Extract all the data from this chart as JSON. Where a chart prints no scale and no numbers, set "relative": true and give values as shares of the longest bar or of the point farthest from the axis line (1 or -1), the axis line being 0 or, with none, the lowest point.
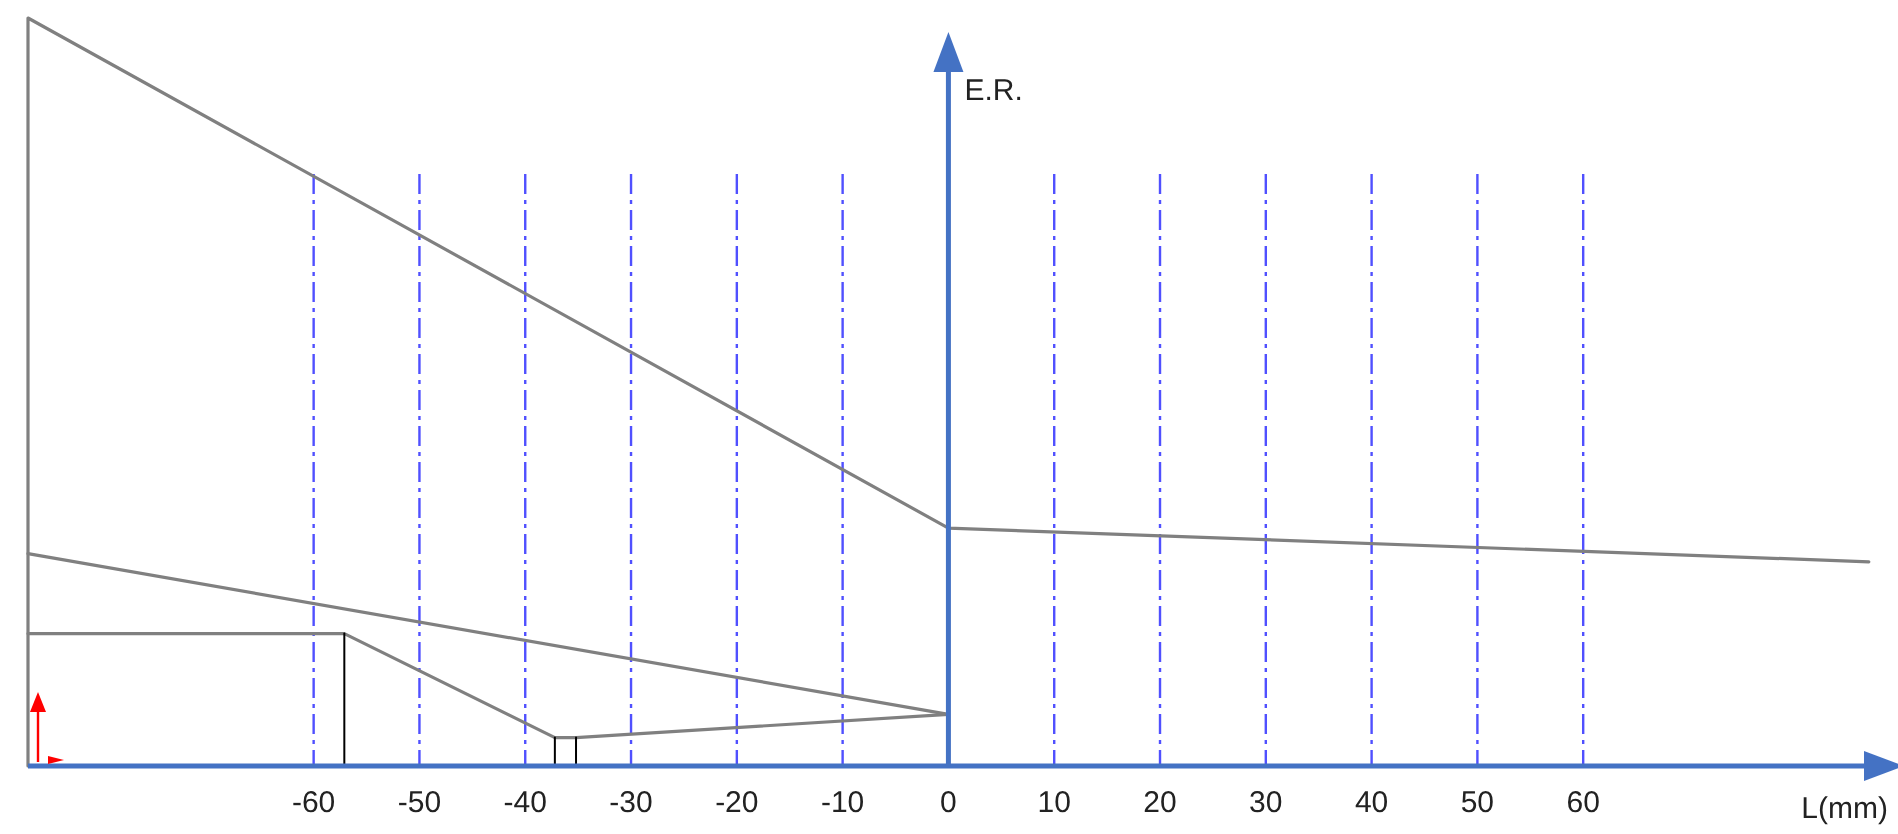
{
  "chart_data": {
    "type": "line",
    "relative": true,
    "xlabel": "L(mm)",
    "ylabel": "E.R.",
    "xlim": [
      -87,
      89
    ],
    "xticks": [
      -60,
      -50,
      -40,
      -30,
      -20,
      -10,
      0,
      10,
      20,
      30,
      40,
      50,
      60
    ],
    "grid": "x",
    "marker": "none",
    "ref_lines": [
      {
        "axis": "x",
        "value": 0,
        "color": "#4472c4"
      }
    ],
    "line_style": "solid",
    "series": [
      {
        "color": "#808080",
        "x": [
          -87,
          -87,
          0,
          87
        ],
        "values": [
          0,
          1,
          0.318,
          0.273
        ]
      },
      {
        "color": "#808080",
        "x": [
          -87,
          0
        ],
        "values": [
          0.284,
          0.069
        ]
      },
      {
        "color": "#808080",
        "x": [
          -87,
          -57.1,
          -37.2,
          -35.2,
          0
        ],
        "values": [
          0.177,
          0.177,
          0.038,
          0.038,
          0.069
        ]
      },
      {
        "color": "#000000",
        "x": [
          -57.1,
          -57.1
        ],
        "values": [
          0,
          0.177
        ]
      },
      {
        "color": "#000000",
        "x": [
          -37.2,
          -37.2
        ],
        "values": [
          0,
          0.038
        ]
      },
      {
        "color": "#000000",
        "x": [
          -35.2,
          -35.2
        ],
        "values": [
          0,
          0.038
        ]
      }
    ]
  }
}
